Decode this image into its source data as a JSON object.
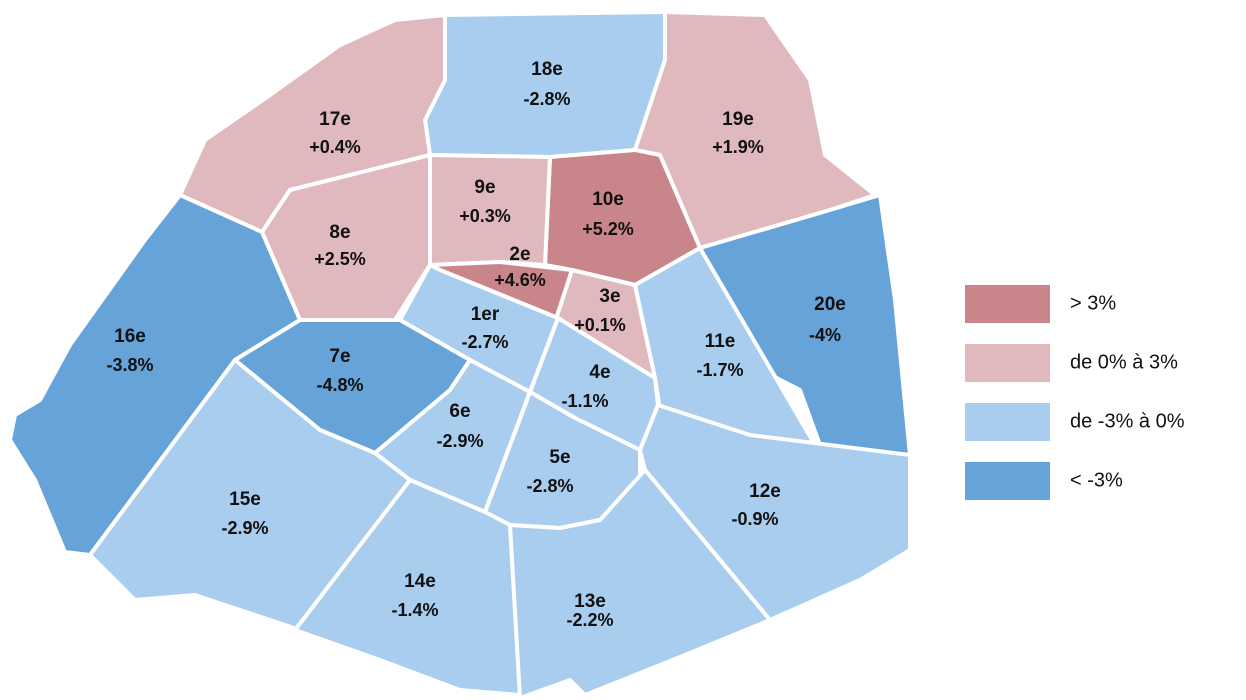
{
  "map": {
    "regions": [
      {
        "name": "18e",
        "label": "-2.8%",
        "color": "#a9cdee"
      },
      {
        "name": "17e",
        "label": "+0.4%",
        "color": "#e0b9be"
      },
      {
        "name": "19e",
        "label": "+1.9%",
        "color": "#e0b9be"
      },
      {
        "name": "10e",
        "label": "+5.2%",
        "color": "#c8868b"
      },
      {
        "name": "9e",
        "label": "+0.3%",
        "color": "#e0b9be"
      },
      {
        "name": "8e",
        "label": "+2.5%",
        "color": "#e0b9be"
      },
      {
        "name": "16e",
        "label": "-3.8%",
        "color": "#65a3d8"
      },
      {
        "name": "2e",
        "label": "+4.6%",
        "color": "#c8868b"
      },
      {
        "name": "3e",
        "label": "+0.1%",
        "color": "#e0b9be"
      },
      {
        "name": "20e",
        "label": "-4%",
        "color": "#65a3d8"
      },
      {
        "name": "11e",
        "label": "-1.7%",
        "color": "#a9cdee"
      },
      {
        "name": "1er",
        "label": "-2.7%",
        "color": "#a9cdee"
      },
      {
        "name": "4e",
        "label": "-1.1%",
        "color": "#a9cdee"
      },
      {
        "name": "7e",
        "label": "-4.8%",
        "color": "#65a3d8"
      },
      {
        "name": "6e",
        "label": "-2.9%",
        "color": "#a9cdee"
      },
      {
        "name": "5e",
        "label": "-2.8%",
        "color": "#a9cdee"
      },
      {
        "name": "12e",
        "label": "-0.9%",
        "color": "#a9cdee"
      },
      {
        "name": "15e",
        "label": "-2.9%",
        "color": "#a9cdee"
      },
      {
        "name": "14e",
        "label": "-1.4%",
        "color": "#a9cdee"
      },
      {
        "name": "13e",
        "label": "-2.2%",
        "color": "#a9cdee"
      }
    ],
    "legend": [
      {
        "label": "> 3%",
        "color": "#c8868b"
      },
      {
        "label": "de 0% à 3%",
        "color": "#e0b9be"
      },
      {
        "label": "de -3% à 0%",
        "color": "#a9cdee"
      },
      {
        "label": "< -3%",
        "color": "#65a3d8"
      }
    ]
  }
}
